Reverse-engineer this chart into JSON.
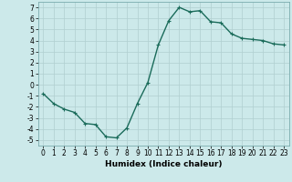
{
  "x": [
    0,
    1,
    2,
    3,
    4,
    5,
    6,
    7,
    8,
    9,
    10,
    11,
    12,
    13,
    14,
    15,
    16,
    17,
    18,
    19,
    20,
    21,
    22,
    23
  ],
  "y": [
    -0.8,
    -1.7,
    -2.2,
    -2.5,
    -3.5,
    -3.6,
    -4.7,
    -4.8,
    -3.9,
    -1.7,
    0.2,
    3.6,
    5.8,
    7.0,
    6.6,
    6.7,
    5.7,
    5.6,
    4.6,
    4.2,
    4.1,
    4.0,
    3.7,
    3.6
  ],
  "line_color": "#1a6b5a",
  "marker": "+",
  "marker_size": 3,
  "linewidth": 1.0,
  "xlabel": "Humidex (Indice chaleur)",
  "xlim": [
    -0.5,
    23.5
  ],
  "ylim": [
    -5.5,
    7.5
  ],
  "yticks": [
    -5,
    -4,
    -3,
    -2,
    -1,
    0,
    1,
    2,
    3,
    4,
    5,
    6,
    7
  ],
  "xticks": [
    0,
    1,
    2,
    3,
    4,
    5,
    6,
    7,
    8,
    9,
    10,
    11,
    12,
    13,
    14,
    15,
    16,
    17,
    18,
    19,
    20,
    21,
    22,
    23
  ],
  "bg_color": "#cce9ea",
  "grid_color": "#b0cfd0",
  "label_fontsize": 6.5,
  "tick_fontsize": 5.5
}
